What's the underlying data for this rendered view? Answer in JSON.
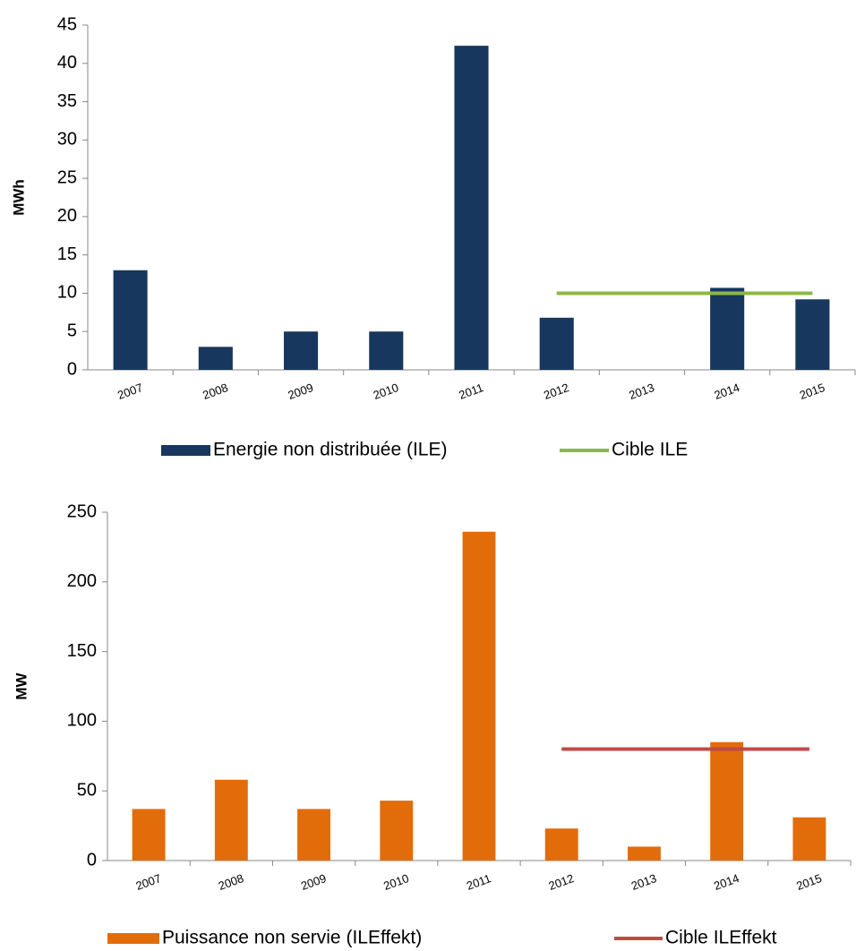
{
  "chart_data": [
    {
      "type": "bar",
      "y_label": "MWh",
      "categories": [
        "2007",
        "2008",
        "2009",
        "2010",
        "2011",
        "2012",
        "2013",
        "2014",
        "2015"
      ],
      "series": [
        {
          "name": "Energie non distribuée (ILE)",
          "type": "bar",
          "color": "#17375e",
          "values": [
            13,
            3,
            5,
            5,
            42.3,
            6.8,
            null,
            10.7,
            9.2
          ]
        },
        {
          "name": "Cible ILE",
          "type": "line",
          "color": "#8db848",
          "values": [
            null,
            null,
            null,
            null,
            null,
            10,
            10,
            10,
            10
          ]
        }
      ],
      "ylim": [
        0,
        45
      ],
      "yticks": [
        0,
        5,
        10,
        15,
        20,
        25,
        30,
        35,
        40,
        45
      ]
    },
    {
      "type": "bar",
      "y_label": "MW",
      "categories": [
        "2007",
        "2008",
        "2009",
        "2010",
        "2011",
        "2012",
        "2013",
        "2014",
        "2015"
      ],
      "series": [
        {
          "name": "Puissance non servie (ILEffekt)",
          "type": "bar",
          "color": "#e36c0a",
          "values": [
            37,
            58,
            37,
            43,
            236,
            23,
            10,
            85,
            31
          ]
        },
        {
          "name": "Cible ILEffekt",
          "type": "line",
          "color": "#be4b48",
          "values": [
            null,
            null,
            null,
            null,
            null,
            80,
            80,
            80,
            80
          ]
        }
      ],
      "ylim": [
        0,
        250
      ],
      "yticks": [
        0,
        50,
        100,
        150,
        200,
        250
      ]
    }
  ]
}
